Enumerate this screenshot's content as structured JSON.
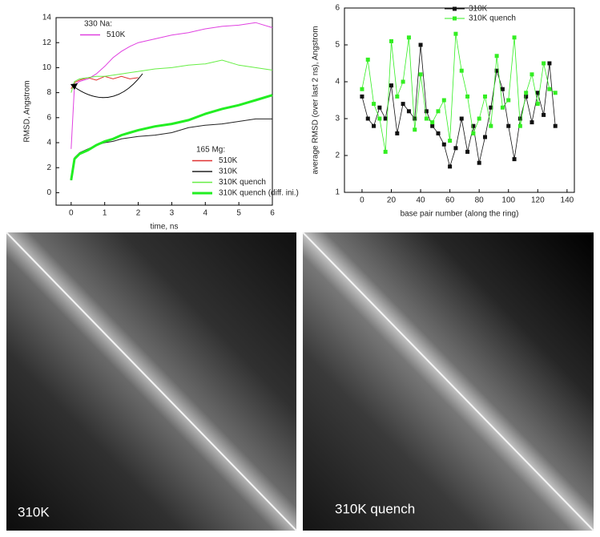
{
  "chart_data": [
    {
      "type": "line",
      "x_label": "time, ns",
      "y_label": "RMSD, Angstrom",
      "legend_groups": [
        "330 Na:",
        "165 Mg:"
      ],
      "xlim": [
        -0.45,
        6
      ],
      "ylim": [
        -1,
        14
      ],
      "xticks": [
        0,
        1,
        2,
        3,
        4,
        5,
        6
      ],
      "yticks": [
        0,
        2,
        4,
        6,
        8,
        10,
        12,
        14
      ],
      "x": [
        0,
        0.1,
        0.25,
        0.5,
        0.75,
        1,
        1.25,
        1.5,
        1.75,
        2,
        2.5,
        3,
        3.5,
        4,
        4.5,
        5,
        5.5,
        6
      ],
      "series": [
        {
          "name": "510K",
          "color": "#e040e0",
          "values": [
            3.5,
            8.6,
            8.9,
            9.1,
            9.5,
            10.1,
            10.8,
            11.3,
            11.7,
            12,
            12.3,
            12.6,
            12.8,
            13.1,
            13.3,
            13.4,
            13.6,
            13.2
          ]
        },
        {
          "name": "510K",
          "color": "#e03030",
          "values": [
            8.3,
            8.8,
            9.0,
            9.2,
            9.0,
            9.3,
            9.1,
            9.3,
            9.1,
            9.2,
            null,
            null,
            null,
            null,
            null,
            null,
            null,
            null
          ]
        },
        {
          "name": "310K",
          "color": "#222222",
          "values": [
            1,
            2.8,
            3.2,
            3.5,
            3.8,
            4,
            4.1,
            4.3,
            4.4,
            4.5,
            4.6,
            4.8,
            5.2,
            5.4,
            5.5,
            5.7,
            5.9,
            5.9
          ]
        },
        {
          "name": "310K quench",
          "color": "#66ee44",
          "values": [
            8,
            8.9,
            9.1,
            9.2,
            9.3,
            9.3,
            9.4,
            9.5,
            9.6,
            9.7,
            9.9,
            10.0,
            10.2,
            10.3,
            10.6,
            10.2,
            10.0,
            9.8
          ]
        },
        {
          "name": "310K quench (diff. ini.)",
          "color": "#22ee22",
          "linewidth": 3,
          "values": [
            1,
            2.7,
            3.1,
            3.4,
            3.8,
            4.1,
            4.3,
            4.6,
            4.8,
            5.0,
            5.3,
            5.5,
            5.8,
            6.3,
            6.7,
            7.0,
            7.4,
            7.8
          ]
        }
      ]
    },
    {
      "type": "scatter",
      "connect": true,
      "x_label": "base pair number  (along the ring)",
      "y_label": "average RMSD (over  last  2 ns), Angstrom",
      "xlim": [
        -12,
        145
      ],
      "ylim": [
        1,
        6
      ],
      "xticks": [
        0,
        20,
        40,
        60,
        80,
        100,
        120,
        140
      ],
      "yticks": [
        1,
        2,
        3,
        4,
        5,
        6
      ],
      "x": [
        0,
        4,
        8,
        12,
        16,
        20,
        24,
        28,
        32,
        36,
        40,
        44,
        48,
        52,
        56,
        60,
        64,
        68,
        72,
        76,
        80,
        84,
        88,
        92,
        96,
        100,
        104,
        108,
        112,
        116,
        120,
        124,
        128,
        132
      ],
      "series": [
        {
          "name": "310K",
          "color": "#111111",
          "values": [
            3.6,
            3.0,
            2.8,
            3.3,
            3.0,
            3.9,
            2.6,
            3.4,
            3.2,
            3.0,
            5.0,
            3.2,
            2.8,
            2.6,
            2.3,
            1.7,
            2.2,
            3.0,
            2.1,
            2.8,
            1.8,
            2.5,
            3.3,
            4.3,
            3.8,
            2.8,
            1.9,
            3.0,
            3.6,
            2.9,
            3.7,
            3.1,
            4.5,
            2.8
          ]
        },
        {
          "name": "310K quench",
          "color": "#33ee22",
          "values": [
            3.8,
            4.6,
            3.4,
            3.0,
            2.1,
            5.1,
            3.6,
            4.0,
            5.2,
            2.7,
            4.2,
            3.0,
            2.9,
            3.2,
            3.5,
            2.4,
            5.3,
            4.3,
            3.6,
            2.6,
            3.0,
            3.6,
            2.8,
            4.7,
            3.3,
            3.5,
            5.2,
            2.8,
            3.7,
            4.2,
            3.4,
            4.5,
            3.8,
            3.7
          ]
        }
      ]
    }
  ],
  "images": [
    {
      "label": "310K"
    },
    {
      "label": "310K quench"
    }
  ]
}
